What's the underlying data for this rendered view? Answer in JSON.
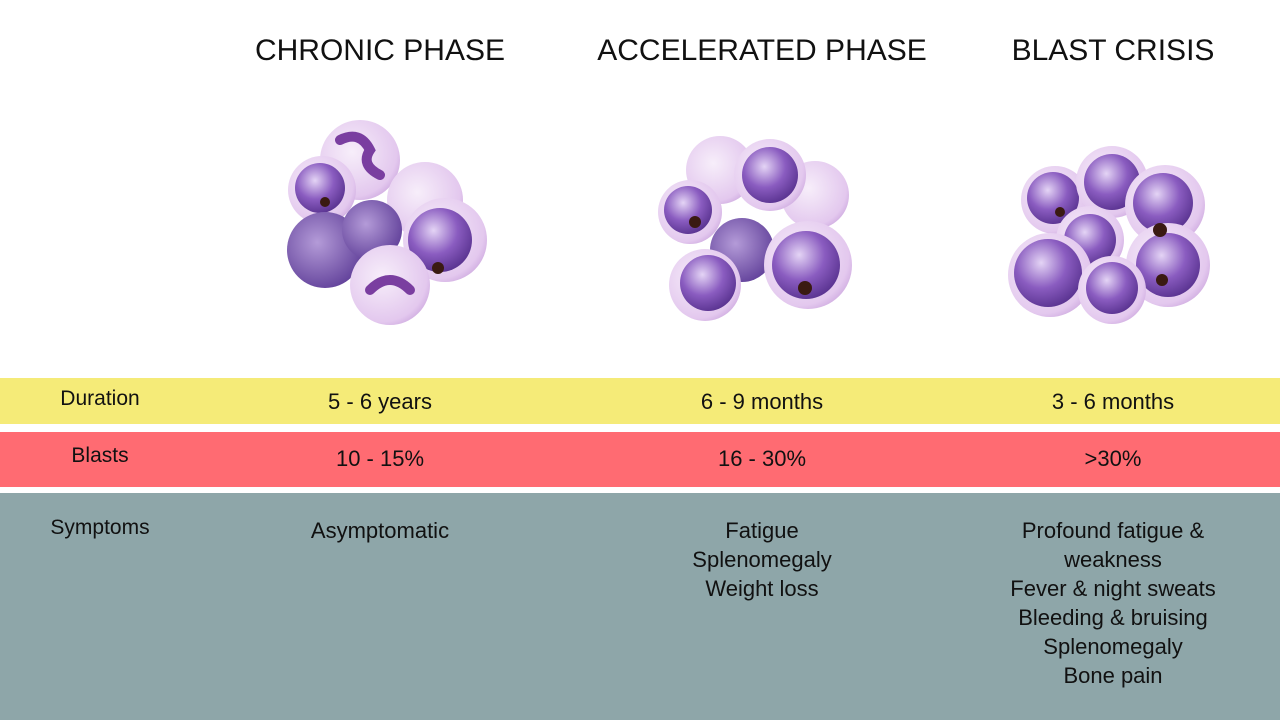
{
  "phases": [
    "CHRONIC PHASE",
    "ACCELERATED PHASE",
    "BLAST CRISIS"
  ],
  "rows": [
    {
      "label": "Duration",
      "cells": [
        "5 - 6 years",
        "6 - 9 months",
        "3 - 6 months"
      ]
    },
    {
      "label": "Blasts",
      "cells": [
        "10 - 15%",
        "16 - 30%",
        ">30%"
      ]
    },
    {
      "label": "Symptoms",
      "cells": [
        [
          "Asymptomatic"
        ],
        [
          "Fatigue",
          "Splenomegaly",
          "Weight loss"
        ],
        [
          "Profound fatigue & weakness",
          "Fever & night sweats",
          "Bleeding & bruising",
          "Splenomegaly",
          "Bone pain"
        ]
      ]
    }
  ]
}
